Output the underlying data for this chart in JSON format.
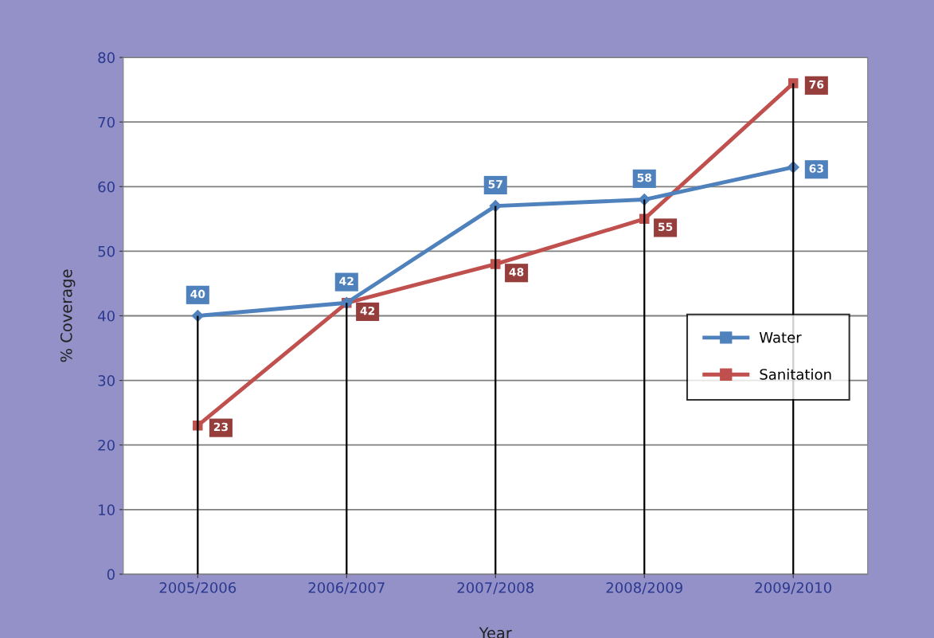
{
  "chart_data": {
    "type": "line",
    "xlabel": "Year",
    "ylabel": "% Coverage",
    "categories": [
      "2005/2006",
      "2006/2007",
      "2007/2008",
      "2008/2009",
      "2009/2010"
    ],
    "series": [
      {
        "name": "Water",
        "color": "#4f81bd",
        "marker": "diamond",
        "values": [
          40,
          42,
          57,
          58,
          63
        ]
      },
      {
        "name": "Sanitation",
        "color": "#c0504d",
        "marker": "square",
        "values": [
          23,
          42,
          48,
          55,
          76
        ]
      },
      {
        "type": "bar",
        "color": "#000000",
        "values": [
          40,
          42,
          57,
          58,
          76
        ],
        "value_labels": [
          null,
          null,
          null,
          null,
          null
        ]
      }
    ],
    "ylim": [
      0,
      80
    ],
    "yticks": [
      0,
      10,
      20,
      30,
      40,
      50,
      60,
      70,
      80
    ],
    "grid": "y",
    "legend": "right",
    "data_labels": true,
    "line_style": "solid"
  }
}
